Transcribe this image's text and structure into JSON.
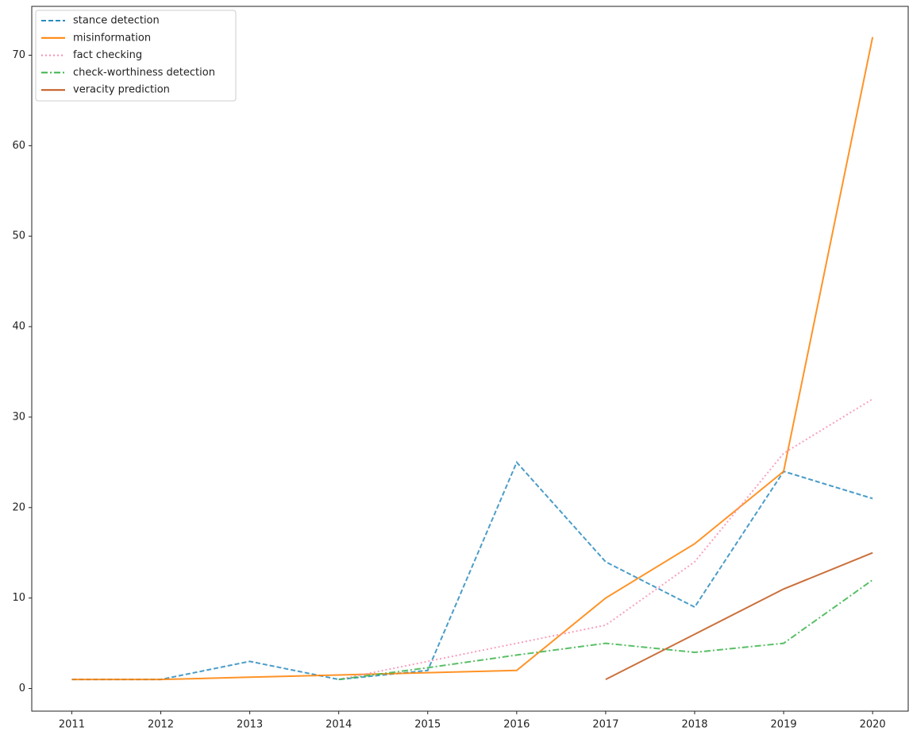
{
  "chart_data": {
    "type": "line",
    "x": [
      2011,
      2012,
      2013,
      2014,
      2015,
      2016,
      2017,
      2018,
      2019,
      2020
    ],
    "series": [
      {
        "name": "stance detection",
        "color": "#2b8cbe",
        "linestyle": "dashed",
        "values": [
          1,
          1,
          3,
          1,
          2,
          25,
          14,
          9,
          24,
          21
        ]
      },
      {
        "name": "misinformation",
        "color": "#ff8000",
        "linestyle": "solid",
        "values": [
          1,
          1,
          1.25,
          1.5,
          1.75,
          2,
          10,
          16,
          24,
          72
        ]
      },
      {
        "name": "fact checking",
        "color": "#f78fb3",
        "linestyle": "dotted",
        "values": [
          null,
          null,
          null,
          1,
          3,
          5,
          7,
          14,
          26,
          32
        ]
      },
      {
        "name": "check-worthiness detection",
        "color": "#3cb44b",
        "linestyle": "dashdot",
        "values": [
          null,
          null,
          null,
          1,
          2.3,
          3.7,
          5,
          4,
          5,
          12
        ]
      },
      {
        "name": "veracity prediction",
        "color": "#c2571a",
        "linestyle": "solid",
        "values": [
          null,
          null,
          null,
          null,
          null,
          null,
          1,
          6,
          11,
          15
        ]
      }
    ],
    "xlim": [
      2010.55,
      2020.4
    ],
    "xticks": [
      2011,
      2012,
      2013,
      2014,
      2015,
      2016,
      2017,
      2018,
      2019,
      2020
    ],
    "ylim": [
      -2.5,
      75.4
    ],
    "yticks": [
      0,
      10,
      20,
      30,
      40,
      50,
      60,
      70
    ],
    "legend": "upper left"
  }
}
